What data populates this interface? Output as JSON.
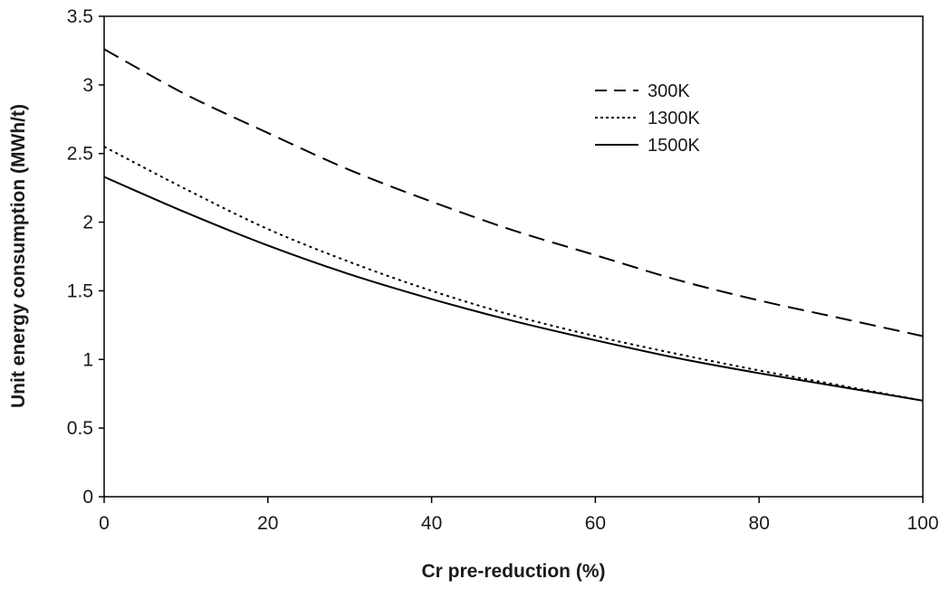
{
  "chart_data": {
    "type": "line",
    "title": "",
    "xlabel": "Cr pre-reduction (%)",
    "ylabel": "Unit energy consumption (MWh/t)",
    "xlim": [
      0,
      100
    ],
    "ylim": [
      0,
      3.5
    ],
    "x_ticks": [
      "0",
      "20",
      "40",
      "60",
      "80",
      "100"
    ],
    "y_ticks": [
      "0",
      "0.5",
      "1",
      "1.5",
      "2",
      "2.5",
      "3",
      "3.5"
    ],
    "grid": false,
    "legend_position": "top-right",
    "series": [
      {
        "name": "300K",
        "style": "dashed",
        "x": [
          0,
          10,
          20,
          30,
          40,
          50,
          60,
          70,
          80,
          90,
          100
        ],
        "y": [
          3.26,
          2.93,
          2.65,
          2.38,
          2.15,
          1.94,
          1.76,
          1.58,
          1.43,
          1.3,
          1.17
        ]
      },
      {
        "name": "1300K",
        "style": "dotted",
        "x": [
          0,
          10,
          20,
          30,
          40,
          50,
          60,
          70,
          80,
          90,
          100
        ],
        "y": [
          2.55,
          2.24,
          1.95,
          1.71,
          1.5,
          1.32,
          1.17,
          1.04,
          0.92,
          0.81,
          0.7
        ]
      },
      {
        "name": "1500K",
        "style": "solid",
        "x": [
          0,
          10,
          20,
          30,
          40,
          50,
          60,
          70,
          80,
          90,
          100
        ],
        "y": [
          2.33,
          2.07,
          1.83,
          1.62,
          1.44,
          1.28,
          1.14,
          1.01,
          0.9,
          0.8,
          0.7
        ]
      }
    ],
    "colors": {
      "line": "#000000",
      "axis": "#000000",
      "text": "#1a1a1a"
    }
  }
}
